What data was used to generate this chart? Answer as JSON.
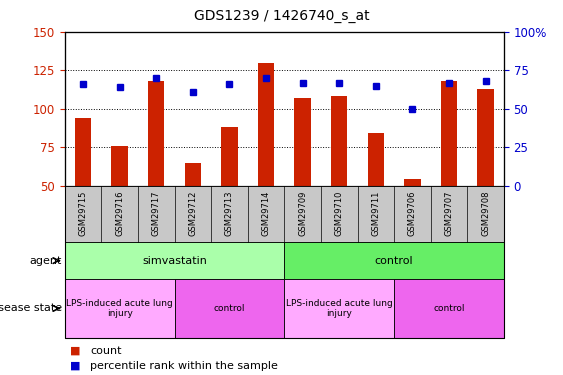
{
  "title": "GDS1239 / 1426740_s_at",
  "samples": [
    "GSM29715",
    "GSM29716",
    "GSM29717",
    "GSM29712",
    "GSM29713",
    "GSM29714",
    "GSM29709",
    "GSM29710",
    "GSM29711",
    "GSM29706",
    "GSM29707",
    "GSM29708"
  ],
  "counts": [
    94,
    76,
    118,
    65,
    88,
    130,
    107,
    108,
    84,
    54,
    118,
    113
  ],
  "percentiles": [
    66,
    64,
    70,
    61,
    66,
    70,
    67,
    67,
    65,
    50,
    67,
    68
  ],
  "bar_color": "#cc2200",
  "dot_color": "#0000cc",
  "ylim_left": [
    50,
    150
  ],
  "ylim_right": [
    0,
    100
  ],
  "yticks_left": [
    50,
    75,
    100,
    125,
    150
  ],
  "yticks_right": [
    0,
    25,
    50,
    75,
    100
  ],
  "grid_values": [
    75,
    100,
    125
  ],
  "agent_groups": [
    {
      "label": "simvastatin",
      "start": 0,
      "end": 6,
      "color": "#aaffaa"
    },
    {
      "label": "control",
      "start": 6,
      "end": 12,
      "color": "#66ee66"
    }
  ],
  "disease_groups": [
    {
      "label": "LPS-induced acute lung\ninjury",
      "start": 0,
      "end": 3,
      "color": "#ffaaff"
    },
    {
      "label": "control",
      "start": 3,
      "end": 6,
      "color": "#ee66ee"
    },
    {
      "label": "LPS-induced acute lung\ninjury",
      "start": 6,
      "end": 9,
      "color": "#ffaaff"
    },
    {
      "label": "control",
      "start": 9,
      "end": 12,
      "color": "#ee66ee"
    }
  ],
  "agent_label": "agent",
  "disease_label": "disease state",
  "legend_count_label": "count",
  "legend_pct_label": "percentile rank within the sample",
  "left_axis_color": "#cc2200",
  "right_axis_color": "#0000cc",
  "bar_bottom": 50,
  "sample_bg_color": "#c8c8c8",
  "plot_bg_color": "#ffffff"
}
